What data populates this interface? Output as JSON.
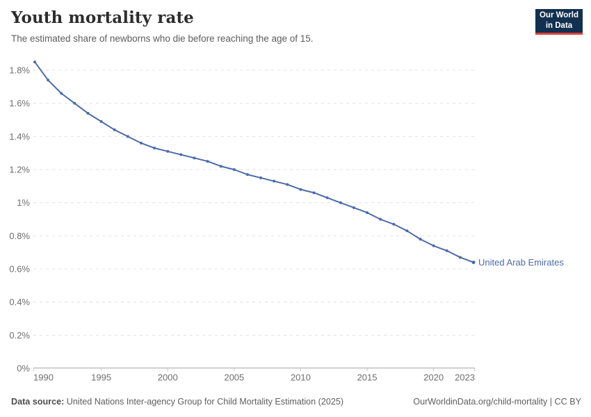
{
  "header": {
    "logo": {
      "line1": "Our World",
      "line2": "in Data"
    }
  },
  "chart_data": {
    "type": "line",
    "title": "Youth mortality rate",
    "subtitle": "The estimated share of newborns who die before reaching the age of 15.",
    "xlabel": "",
    "ylabel": "",
    "grid": "dashed-horizontal",
    "legend": "end-of-line-label",
    "xlim": [
      1990,
      2023
    ],
    "ylim": [
      0,
      1.8
    ],
    "x_ticks": [
      1990,
      1995,
      2000,
      2005,
      2010,
      2015,
      2020,
      2023
    ],
    "y_ticks": [
      {
        "value": 0,
        "label": "0%"
      },
      {
        "value": 0.2,
        "label": "0.2%"
      },
      {
        "value": 0.4,
        "label": "0.4%"
      },
      {
        "value": 0.6,
        "label": "0.6%"
      },
      {
        "value": 0.8,
        "label": "0.8%"
      },
      {
        "value": 1,
        "label": "1%"
      },
      {
        "value": 1.2,
        "label": "1.2%"
      },
      {
        "value": 1.4,
        "label": "1.4%"
      },
      {
        "value": 1.6,
        "label": "1.6%"
      },
      {
        "value": 1.8,
        "label": "1.8%"
      }
    ],
    "series": [
      {
        "name": "United Arab Emirates",
        "color": "#4c6ba9",
        "unit": "%",
        "x": [
          1990,
          1991,
          1992,
          1993,
          1994,
          1995,
          1996,
          1997,
          1998,
          1999,
          2000,
          2001,
          2002,
          2003,
          2004,
          2005,
          2006,
          2007,
          2008,
          2009,
          2010,
          2011,
          2012,
          2013,
          2014,
          2015,
          2016,
          2017,
          2018,
          2019,
          2020,
          2021,
          2022,
          2023
        ],
        "values": [
          1.85,
          1.74,
          1.66,
          1.6,
          1.54,
          1.49,
          1.44,
          1.4,
          1.36,
          1.33,
          1.31,
          1.29,
          1.27,
          1.25,
          1.22,
          1.2,
          1.17,
          1.15,
          1.13,
          1.11,
          1.08,
          1.06,
          1.03,
          1.0,
          0.97,
          0.94,
          0.9,
          0.87,
          0.83,
          0.78,
          0.74,
          0.71,
          0.67,
          0.64
        ]
      }
    ],
    "colors": {
      "line": "#4c6ba9",
      "gridline": "#e0e0e0",
      "axis_line": "#a6a6a6",
      "tick": "#c9c9c9",
      "axis_label": "#6e6e6e"
    }
  },
  "footer": {
    "datasource_label": "Data source:",
    "datasource_text": " United Nations Inter-agency Group for Child Mortality Estimation (2025)",
    "link_text": "OurWorldinData.org/child-mortality | CC BY"
  }
}
